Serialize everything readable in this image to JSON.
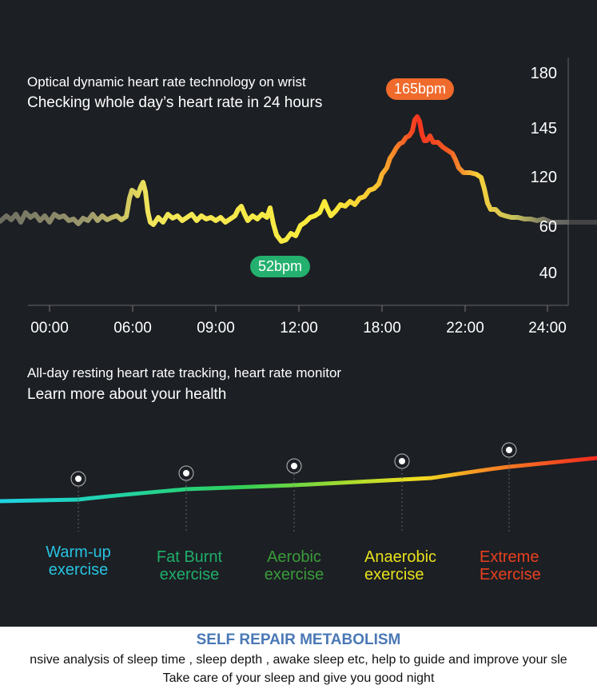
{
  "heart_rate": {
    "headline": "Optical dynamic heart rate technology on wrist",
    "subline": "Checking whole day’s heart rate in 24 hours",
    "peak_label": "165bpm",
    "low_label": "52bpm",
    "chart_data": {
      "type": "line",
      "y_ticks": [
        "180",
        "145",
        "120",
        "60",
        "40"
      ],
      "x_ticks": [
        "00:00",
        "06:00",
        "09:00",
        "12:00",
        "18:00",
        "22:00",
        "24:00"
      ],
      "annotations": [
        "165bpm",
        "52bpm"
      ],
      "grid": false
    }
  },
  "resting": {
    "headline": "All-day resting heart rate tracking, heart rate monitor",
    "subline": "Learn more about your health"
  },
  "zones": [
    {
      "line1": "Warm-up",
      "line2": "exercise",
      "color": "#27c3e0"
    },
    {
      "line1": "Fat Burnt",
      "line2": "exercise",
      "color": "#1fae6a"
    },
    {
      "line1": "Aerobic",
      "line2": "exercise",
      "color": "#3a9b3a"
    },
    {
      "line1": "Anaerobic",
      "line2": "exercise",
      "color": "#e8e11c"
    },
    {
      "line1": "Extreme",
      "line2": "Exercise",
      "color": "#e8401f"
    }
  ],
  "footer": {
    "title": "SELF REPAIR METABOLISM",
    "line1": "nsive analysis of sleep time , sleep depth , awake sleep etc, help to guide and improve your sle",
    "line2": "Take care of your sleep and give you good night"
  }
}
